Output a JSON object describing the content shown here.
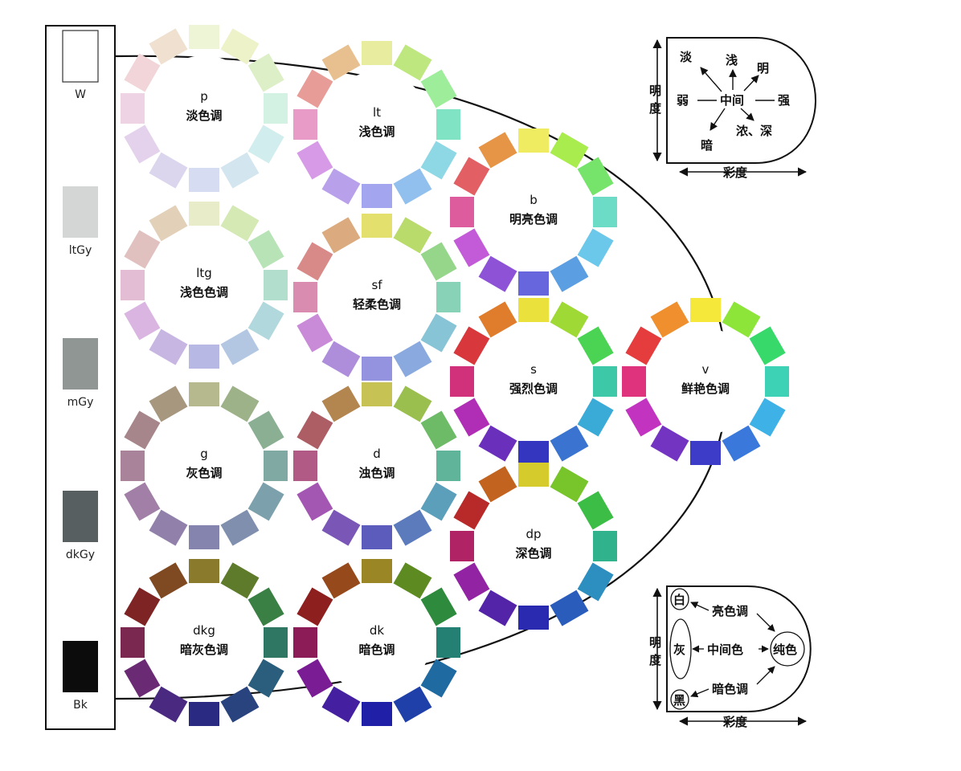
{
  "gray_scale": [
    {
      "label": "W",
      "color": "#ffffff"
    },
    {
      "label": "ltGy",
      "color": "#d4d6d6"
    },
    {
      "label": "mGy",
      "color": "#8f9694"
    },
    {
      "label": "dkGy",
      "color": "#585f60"
    },
    {
      "label": "Bk",
      "color": "#0c0c0c"
    }
  ],
  "wheels": [
    {
      "code": "p",
      "name": "淡色调",
      "hues": [
        "#eef5d6",
        "#edf2c9",
        "#dcefc6",
        "#d4f2e3",
        "#d2eded",
        "#d3e6f0",
        "#d6dcf1",
        "#dcd5ee",
        "#e4d2ec",
        "#eed3e4",
        "#f1d5d8",
        "#efe0cf"
      ]
    },
    {
      "code": "lt",
      "name": "浅色调",
      "hues": [
        "#e8ec9f",
        "#bfe77f",
        "#9ded9a",
        "#7fe3c4",
        "#8ed8e6",
        "#92c0ee",
        "#a3a6ee",
        "#b9a0ea",
        "#d69ae6",
        "#e79bc6",
        "#e79c98",
        "#e8c08f"
      ]
    },
    {
      "code": "b",
      "name": "明亮色调",
      "hues": [
        "#f0ec62",
        "#a9ec4e",
        "#76e46a",
        "#6ddcc6",
        "#6cc8ea",
        "#5b9fe2",
        "#6766dc",
        "#8d52d6",
        "#c35bd8",
        "#dc5c9e",
        "#e25f64",
        "#e69546"
      ]
    },
    {
      "code": "ltg",
      "name": "浅色色调",
      "hues": [
        "#e9ecc9",
        "#d5e9b5",
        "#b8e3b6",
        "#b2dfcd",
        "#b1d8dd",
        "#b3c7e3",
        "#b8b8e5",
        "#c7b5e2",
        "#dab5e2",
        "#e2bdd3",
        "#e1c0c0",
        "#e2d0b9"
      ]
    },
    {
      "code": "sf",
      "name": "轻柔色调",
      "hues": [
        "#e4e06e",
        "#b9db6c",
        "#95d68b",
        "#88d3b7",
        "#86c4d6",
        "#8aa9de",
        "#9493e0",
        "#ae8ddb",
        "#c98ad7",
        "#d98cb0",
        "#d88a88",
        "#dbaa7e"
      ]
    },
    {
      "code": "s",
      "name": "强烈色调",
      "hues": [
        "#ebe13d",
        "#9fd935",
        "#4bd354",
        "#3dc9a8",
        "#3aaad7",
        "#3a74d0",
        "#3436c0",
        "#6a2fbb",
        "#b02eb6",
        "#d1307a",
        "#d8383c",
        "#df7d2d"
      ]
    },
    {
      "code": "v",
      "name": "鲜艳色调",
      "hues": [
        "#f5e83a",
        "#8ee53a",
        "#36d96a",
        "#3dd2b6",
        "#3eb2e6",
        "#3a78dc",
        "#3c3cc8",
        "#7434c2",
        "#c233c0",
        "#e0337e",
        "#e53c3e",
        "#ef8f2e"
      ]
    },
    {
      "code": "g",
      "name": "灰色调",
      "hues": [
        "#b6b98e",
        "#9eb289",
        "#8aaf92",
        "#7fa9a2",
        "#7da1ac",
        "#7f8fad",
        "#8484ae",
        "#9181aa",
        "#a17fa6",
        "#a8839a",
        "#a6868a",
        "#a8977f"
      ]
    },
    {
      "code": "d",
      "name": "浊色调",
      "hues": [
        "#c6c254",
        "#9bbf4f",
        "#6dbb67",
        "#5fb49a",
        "#5c9fbb",
        "#5c7bbd",
        "#5c5cbd",
        "#7a57b6",
        "#a357b2",
        "#b15a86",
        "#ad5d64",
        "#b3854f"
      ]
    },
    {
      "code": "dp",
      "name": "深色调",
      "hues": [
        "#d6cb2c",
        "#78c42b",
        "#3cbd45",
        "#30b38c",
        "#2d8ec0",
        "#2a5cbc",
        "#2a2ab0",
        "#5424a8",
        "#9224a4",
        "#b02466",
        "#b82a2a",
        "#c2631f"
      ]
    },
    {
      "code": "dkg",
      "name": "暗灰色调",
      "hues": [
        "#8a7a2c",
        "#5d7b2a",
        "#3a7f43",
        "#2f7763",
        "#2a5e7c",
        "#29437f",
        "#2a2a82",
        "#4a2a80",
        "#6a2a74",
        "#7b2850",
        "#7e2424",
        "#7f4a22"
      ]
    },
    {
      "code": "dk",
      "name": "暗色调",
      "hues": [
        "#9a8624",
        "#5e8a22",
        "#2e8a3c",
        "#238072",
        "#1f6aa0",
        "#1e40a8",
        "#1f1fa8",
        "#4420a0",
        "#7a1c94",
        "#8c1c58",
        "#8e1f1f",
        "#964a1c"
      ]
    }
  ],
  "top_diagram": {
    "axis_v": "明度",
    "axis_h": "彩度",
    "labels": {
      "pale": "淡",
      "light": "浅",
      "bright": "明",
      "weak": "弱",
      "mid": "中间",
      "strong": "强",
      "dark": "暗",
      "deep": "浓、深"
    }
  },
  "bottom_diagram": {
    "axis_v": "明度",
    "axis_h": "彩度",
    "labels": {
      "white": "白",
      "gray": "灰",
      "black": "黑",
      "pure": "纯色",
      "light_tone": "亮色调",
      "mid_tone": "中间色",
      "dark_tone": "暗色调"
    }
  }
}
